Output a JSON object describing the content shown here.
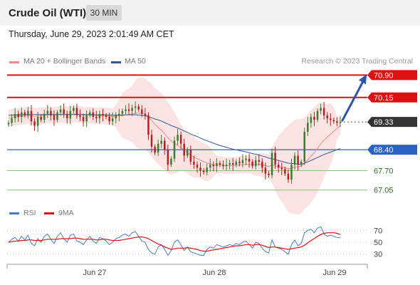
{
  "header": {
    "title": "Crude Oil (WTI)",
    "timeframe": "30 MIN"
  },
  "datetime": "Thursday, June 29, 2023 2:01:49 AM CET",
  "legend": {
    "bb_label": "MA 20 + Bollinger Bands",
    "ma50_label": "MA 50",
    "credit": "Research © 2023 Trading Central"
  },
  "rsi_legend": {
    "rsi_label": "RSI",
    "ma9_label": "9MA"
  },
  "colors": {
    "bb": "#f08a8a",
    "bb_fill": "#fbdede",
    "ma50": "#33569a",
    "resistance": "#dd1111",
    "support": "#2b62c4",
    "target": "#8fbf7c",
    "up": "#3e7a32",
    "down": "#b22222",
    "rsi": "#4a7bd4",
    "ma9": "#dd1111"
  },
  "chart_data": [
    {
      "type": "candlestick",
      "x_tick_labels": [
        "Jun 27",
        "Jun 28",
        "Jun 29"
      ],
      "ylim": [
        66.9,
        71.1
      ],
      "levels": [
        {
          "name": "resistance-2",
          "value": 70.9,
          "label": "70.90",
          "style": "resistance"
        },
        {
          "name": "resistance-1",
          "value": 70.15,
          "label": "70.15",
          "style": "resistance"
        },
        {
          "name": "last-price",
          "value": 69.33,
          "label": "69.33",
          "style": "price"
        },
        {
          "name": "pivot",
          "value": 68.4,
          "label": "68.40",
          "style": "pivot"
        },
        {
          "name": "support-1",
          "value": 67.7,
          "label": "67.70",
          "style": "target"
        },
        {
          "name": "support-2",
          "value": 67.05,
          "label": "67.05",
          "style": "target"
        }
      ],
      "close": [
        69.3,
        69.45,
        69.6,
        69.5,
        69.65,
        69.55,
        69.7,
        69.35,
        69.2,
        69.5,
        69.4,
        69.6,
        69.7,
        69.55,
        69.4,
        69.65,
        69.75,
        69.6,
        69.45,
        69.7,
        69.8,
        69.55,
        69.5,
        69.35,
        69.55,
        69.65,
        69.5,
        69.45,
        69.6,
        69.55,
        69.5,
        69.35,
        69.45,
        69.55,
        69.6,
        69.7,
        69.75,
        69.7,
        69.8,
        69.85,
        69.75,
        69.6,
        69.55,
        68.9,
        68.5,
        68.3,
        68.6,
        68.7,
        68.4,
        67.9,
        68.1,
        68.7,
        68.9,
        68.6,
        68.2,
        68.4,
        68.0,
        67.9,
        67.8,
        67.7,
        67.65,
        67.8,
        67.9,
        67.85,
        67.95,
        67.9,
        67.85,
        67.9,
        67.95,
        67.9,
        68.0,
        67.95,
        68.05,
        68.1,
        68.0,
        67.85,
        68.05,
        68.0,
        67.8,
        67.6,
        67.55,
        68.3,
        67.9,
        67.8,
        67.75,
        67.6,
        67.4,
        67.9,
        68.2,
        67.9,
        68.0,
        69.0,
        69.3,
        69.5,
        69.4,
        69.7,
        69.8,
        69.55,
        69.45,
        69.4,
        69.35,
        69.3,
        69.33
      ],
      "ma20": [
        69.45,
        69.48,
        69.5,
        69.5,
        69.52,
        69.53,
        69.55,
        69.54,
        69.52,
        69.53,
        69.53,
        69.55,
        69.57,
        69.57,
        69.56,
        69.57,
        69.58,
        69.58,
        69.57,
        69.58,
        69.6,
        69.59,
        69.58,
        69.56,
        69.56,
        69.56,
        69.55,
        69.54,
        69.54,
        69.54,
        69.53,
        69.52,
        69.51,
        69.52,
        69.53,
        69.55,
        69.57,
        69.58,
        69.6,
        69.62,
        69.63,
        69.62,
        69.6,
        69.5,
        69.38,
        69.25,
        69.15,
        69.05,
        68.94,
        68.8,
        68.7,
        68.62,
        68.55,
        68.47,
        68.38,
        68.3,
        68.22,
        68.15,
        68.1,
        68.05,
        68.0,
        67.96,
        67.93,
        67.9,
        67.9,
        67.9,
        67.88,
        67.87,
        67.87,
        67.87,
        67.88,
        67.89,
        67.9,
        67.91,
        67.91,
        67.9,
        67.91,
        67.91,
        67.9,
        67.87,
        67.84,
        67.88,
        67.86,
        67.84,
        67.82,
        67.8,
        67.76,
        67.78,
        67.82,
        67.83,
        67.85,
        67.95,
        68.06,
        68.18,
        68.3,
        68.45,
        68.6,
        68.72,
        68.82,
        68.92,
        69.02,
        69.12,
        69.2
      ],
      "ma50": [
        69.55,
        69.56,
        69.56,
        69.57,
        69.57,
        69.58,
        69.58,
        69.58,
        69.58,
        69.58,
        69.58,
        69.58,
        69.58,
        69.58,
        69.58,
        69.58,
        69.58,
        69.58,
        69.58,
        69.58,
        69.58,
        69.58,
        69.58,
        69.58,
        69.58,
        69.58,
        69.57,
        69.57,
        69.57,
        69.57,
        69.57,
        69.56,
        69.56,
        69.56,
        69.56,
        69.56,
        69.57,
        69.57,
        69.57,
        69.57,
        69.56,
        69.55,
        69.54,
        69.51,
        69.47,
        69.43,
        69.4,
        69.36,
        69.31,
        69.26,
        69.21,
        69.17,
        69.13,
        69.08,
        69.03,
        68.98,
        68.93,
        68.88,
        68.84,
        68.79,
        68.74,
        68.7,
        68.66,
        68.62,
        68.58,
        68.54,
        68.51,
        68.48,
        68.45,
        68.42,
        68.4,
        68.37,
        68.35,
        68.33,
        68.3,
        68.27,
        68.25,
        68.22,
        68.19,
        68.16,
        68.12,
        68.1,
        68.07,
        68.04,
        68.01,
        67.98,
        67.95,
        67.94,
        67.93,
        67.92,
        67.91,
        67.95,
        67.99,
        68.04,
        68.09,
        68.14,
        68.19,
        68.24,
        68.28,
        68.32,
        68.36,
        68.4,
        68.44
      ]
    },
    {
      "type": "line",
      "title": "RSI",
      "y_tick_labels": [
        "70",
        "50",
        "30"
      ],
      "ylim": [
        20,
        80
      ],
      "series": [
        {
          "name": "RSI",
          "values": [
            50,
            55,
            58,
            52,
            60,
            54,
            62,
            48,
            44,
            56,
            50,
            60,
            64,
            55,
            48,
            60,
            66,
            56,
            50,
            62,
            64,
            52,
            50,
            46,
            54,
            60,
            52,
            48,
            58,
            56,
            52,
            46,
            50,
            56,
            58,
            62,
            64,
            60,
            66,
            68,
            60,
            52,
            50,
            38,
            32,
            30,
            42,
            46,
            38,
            28,
            36,
            50,
            54,
            46,
            36,
            42,
            34,
            32,
            30,
            28,
            28,
            38,
            42,
            40,
            46,
            44,
            42,
            44,
            46,
            44,
            48,
            46,
            50,
            52,
            46,
            40,
            50,
            48,
            40,
            34,
            32,
            54,
            42,
            40,
            38,
            34,
            30,
            46,
            54,
            44,
            48,
            66,
            70,
            72,
            66,
            74,
            76,
            64,
            60,
            62,
            60,
            58,
            58
          ]
        },
        {
          "name": "9MA",
          "values": [
            50,
            51,
            52,
            52,
            53,
            53,
            54,
            54,
            53,
            53,
            53,
            54,
            55,
            55,
            55,
            55,
            56,
            56,
            56,
            56,
            57,
            57,
            56,
            55,
            55,
            55,
            55,
            54,
            54,
            55,
            55,
            54,
            53,
            53,
            53,
            54,
            55,
            56,
            57,
            58,
            59,
            59,
            58,
            56,
            53,
            50,
            47,
            45,
            42,
            40,
            38,
            39,
            40,
            40,
            40,
            41,
            40,
            39,
            38,
            36,
            35,
            35,
            36,
            37,
            38,
            39,
            40,
            41,
            42,
            43,
            44,
            44,
            45,
            46,
            46,
            45,
            46,
            46,
            45,
            43,
            41,
            42,
            42,
            41,
            40,
            39,
            38,
            39,
            40,
            41,
            42,
            45,
            49,
            53,
            56,
            60,
            63,
            65,
            66,
            66,
            66,
            65,
            63
          ]
        }
      ]
    }
  ]
}
